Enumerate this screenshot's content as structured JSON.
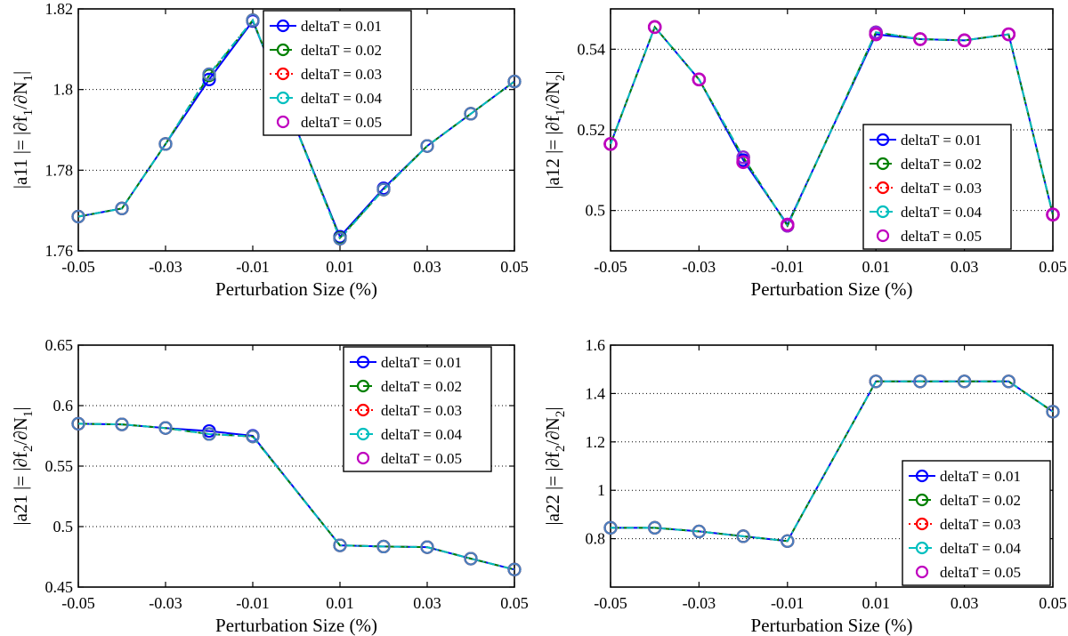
{
  "chart_data": [
    {
      "type": "line",
      "xlabel": "Perturbation Size (%)",
      "ylabel": "|a11 |= |∂f₁/∂N₁|",
      "xlim": [
        -0.05,
        0.05
      ],
      "ylim": [
        1.76,
        1.82
      ],
      "xticks": [
        -0.05,
        -0.03,
        -0.01,
        0.01,
        0.03,
        0.05
      ],
      "xtick_labels": [
        "-0.05",
        "-0.03",
        "-0.01",
        "0.01",
        "0.03",
        "0.05"
      ],
      "yticks": [
        1.76,
        1.78,
        1.8,
        1.82
      ],
      "ytick_labels": [
        "1.76",
        "1.78",
        "1.8",
        "1.82"
      ],
      "grid": "y",
      "legend_position": "top-center",
      "x": [
        -0.05,
        -0.04,
        -0.03,
        -0.02,
        -0.01,
        0.01,
        0.02,
        0.03,
        0.04,
        0.05
      ],
      "series": [
        {
          "name": "deltaT = 0.01",
          "values": [
            1.7685,
            1.7705,
            1.7865,
            1.8025,
            1.817,
            1.7635,
            1.7755,
            1.786,
            1.794,
            1.802
          ]
        },
        {
          "name": "deltaT = 0.02",
          "values": [
            1.7685,
            1.7705,
            1.7865,
            1.8035,
            1.8172,
            1.7632,
            1.7752,
            1.786,
            1.794,
            1.802
          ]
        },
        {
          "name": "deltaT = 0.03",
          "values": [
            1.7685,
            1.7705,
            1.7865,
            1.8038,
            1.8172,
            1.763,
            1.7752,
            1.786,
            1.794,
            1.802
          ]
        },
        {
          "name": "deltaT = 0.04",
          "values": [
            1.7685,
            1.7705,
            1.7865,
            1.8038,
            1.8172,
            1.763,
            1.7752,
            1.786,
            1.794,
            1.802
          ]
        },
        {
          "name": "deltaT = 0.05",
          "values": [
            null,
            null,
            null,
            null,
            null,
            null,
            null,
            null,
            null,
            null
          ]
        }
      ]
    },
    {
      "type": "line",
      "xlabel": "Perturbation Size (%)",
      "ylabel": "|a12 |= |∂f₁/∂N₂|",
      "xlim": [
        -0.05,
        0.05
      ],
      "ylim": [
        0.49,
        0.55
      ],
      "xticks": [
        -0.05,
        -0.03,
        -0.01,
        0.01,
        0.03,
        0.05
      ],
      "xtick_labels": [
        "-0.05",
        "-0.03",
        "-0.01",
        "0.01",
        "0.03",
        "0.05"
      ],
      "yticks": [
        0.5,
        0.52,
        0.54
      ],
      "ytick_labels": [
        "0.5",
        "0.52",
        "0.54"
      ],
      "grid": "y",
      "legend_position": "bottom-right",
      "x": [
        -0.05,
        -0.04,
        -0.03,
        -0.02,
        -0.01,
        0.01,
        0.02,
        0.03,
        0.04,
        0.05
      ],
      "series": [
        {
          "name": "deltaT = 0.01",
          "values": [
            0.5165,
            0.5455,
            0.5325,
            0.5125,
            0.4965,
            0.5437,
            0.5425,
            0.5422,
            0.5437,
            0.499
          ]
        },
        {
          "name": "deltaT = 0.02",
          "values": [
            0.5165,
            0.5455,
            0.5325,
            0.5132,
            0.4962,
            0.5442,
            0.5425,
            0.5422,
            0.5437,
            0.499
          ]
        },
        {
          "name": "deltaT = 0.03",
          "values": [
            0.5165,
            0.5455,
            0.5325,
            0.5132,
            0.4962,
            0.5442,
            0.5425,
            0.5422,
            0.5437,
            0.499
          ]
        },
        {
          "name": "deltaT = 0.04",
          "values": [
            0.5165,
            0.5455,
            0.5325,
            0.5132,
            0.4962,
            0.5442,
            0.5425,
            0.5422,
            0.5437,
            0.499
          ]
        },
        {
          "name": "deltaT = 0.05",
          "values": [
            0.5165,
            0.5455,
            0.5325,
            0.512,
            0.4965,
            0.5437,
            0.5425,
            0.5422,
            0.5437,
            0.499
          ]
        }
      ]
    },
    {
      "type": "line",
      "xlabel": "Perturbation Size (%)",
      "ylabel": "|a21 |= |∂f₂/∂N₁|",
      "xlim": [
        -0.05,
        0.05
      ],
      "ylim": [
        0.45,
        0.65
      ],
      "xticks": [
        -0.05,
        -0.03,
        -0.01,
        0.01,
        0.03,
        0.05
      ],
      "xtick_labels": [
        "-0.05",
        "-0.03",
        "-0.01",
        "0.01",
        "0.03",
        "0.05"
      ],
      "yticks": [
        0.45,
        0.5,
        0.55,
        0.6,
        0.65
      ],
      "ytick_labels": [
        "0.45",
        "0.5",
        "0.55",
        "0.6",
        "0.65"
      ],
      "grid": "y",
      "legend_position": "top-right",
      "x": [
        -0.05,
        -0.04,
        -0.03,
        -0.02,
        -0.01,
        0.01,
        0.02,
        0.03,
        0.04,
        0.05
      ],
      "series": [
        {
          "name": "deltaT = 0.01",
          "values": [
            0.585,
            0.5845,
            0.5815,
            0.579,
            0.575,
            0.4845,
            0.4835,
            0.483,
            0.4735,
            0.4645
          ]
        },
        {
          "name": "deltaT = 0.02",
          "values": [
            0.585,
            0.5845,
            0.5815,
            0.5765,
            0.5745,
            0.4845,
            0.4835,
            0.483,
            0.4735,
            0.4645
          ]
        },
        {
          "name": "deltaT = 0.03",
          "values": [
            0.585,
            0.5845,
            0.5815,
            0.5765,
            0.5745,
            0.4845,
            0.4835,
            0.483,
            0.4735,
            0.4645
          ]
        },
        {
          "name": "deltaT = 0.04",
          "values": [
            0.585,
            0.5845,
            0.5815,
            0.5765,
            0.5745,
            0.4845,
            0.4835,
            0.483,
            0.4735,
            0.4645
          ]
        },
        {
          "name": "deltaT = 0.05",
          "values": [
            null,
            null,
            null,
            null,
            null,
            null,
            null,
            null,
            null,
            null
          ]
        }
      ]
    },
    {
      "type": "line",
      "xlabel": "Perturbation Size (%)",
      "ylabel": "|a22 |= |∂f₂/∂N₂|",
      "xlim": [
        -0.05,
        0.05
      ],
      "ylim": [
        0.6,
        1.6
      ],
      "xticks": [
        -0.05,
        -0.03,
        -0.01,
        0.01,
        0.03,
        0.05
      ],
      "xtick_labels": [
        "-0.05",
        "-0.03",
        "-0.01",
        "0.01",
        "0.03",
        "0.05"
      ],
      "yticks": [
        0.8,
        1.0,
        1.2,
        1.4,
        1.6
      ],
      "ytick_labels": [
        "0.8",
        "1",
        "1.2",
        "1.4",
        "1.6"
      ],
      "grid": "y",
      "legend_position": "bottom-right",
      "x": [
        -0.05,
        -0.04,
        -0.03,
        -0.02,
        -0.01,
        0.01,
        0.02,
        0.03,
        0.04,
        0.05
      ],
      "series": [
        {
          "name": "deltaT = 0.01",
          "values": [
            0.845,
            0.845,
            0.83,
            0.81,
            0.79,
            1.45,
            1.45,
            1.45,
            1.45,
            1.325
          ]
        },
        {
          "name": "deltaT = 0.02",
          "values": [
            0.845,
            0.845,
            0.83,
            0.81,
            0.79,
            1.45,
            1.45,
            1.45,
            1.45,
            1.325
          ]
        },
        {
          "name": "deltaT = 0.03",
          "values": [
            0.845,
            0.845,
            0.83,
            0.81,
            0.79,
            1.45,
            1.45,
            1.45,
            1.45,
            1.325
          ]
        },
        {
          "name": "deltaT = 0.04",
          "values": [
            0.845,
            0.845,
            0.83,
            0.81,
            0.79,
            1.45,
            1.45,
            1.45,
            1.45,
            1.325
          ]
        },
        {
          "name": "deltaT = 0.05",
          "values": [
            null,
            null,
            null,
            null,
            null,
            null,
            null,
            null,
            null,
            null
          ]
        }
      ]
    }
  ],
  "series_styles": [
    {
      "color": "#0000ff",
      "dash": "none",
      "dot": false
    },
    {
      "color": "#008000",
      "dash": "10,5",
      "dot": false
    },
    {
      "color": "#ff0000",
      "dash": "2,4",
      "dot": true
    },
    {
      "color": "#00bfbf",
      "dash": "8,4,2,4",
      "dot": true
    },
    {
      "color": "#bf00bf",
      "dash": "none",
      "dot": false
    }
  ],
  "marker_overlay_colors": [
    "#4a7fc0",
    "#8a2be2",
    "#4a7fc0",
    "#4a7fc0"
  ]
}
